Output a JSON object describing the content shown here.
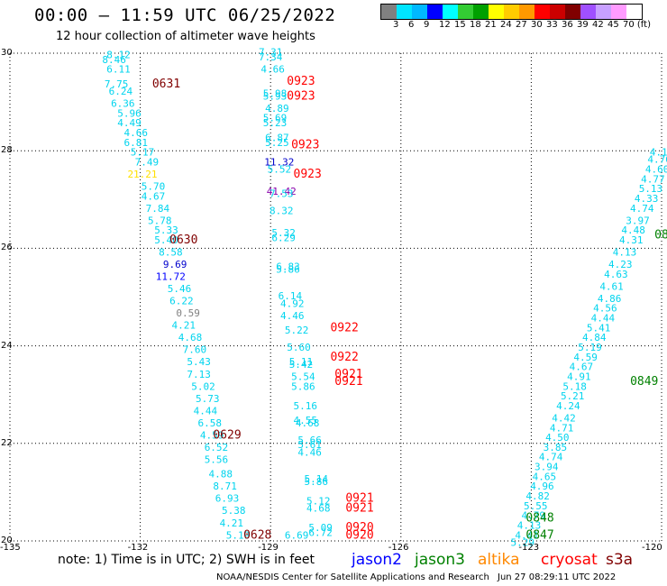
{
  "header": {
    "title": "00:00 — 11:59 UTC 06/25/2022",
    "subtitle": "12 hour collection of altimeter wave heights"
  },
  "colorbar": {
    "colors": [
      "#808080",
      "#00e5ff",
      "#00b8ff",
      "#0000ff",
      "#00ffff",
      "#33cc33",
      "#00a000",
      "#ffff00",
      "#ffcc00",
      "#ff9900",
      "#ff0000",
      "#cc0000",
      "#800000",
      "#a050ff",
      "#c8a0ff",
      "#ff9bff",
      "#ffffff"
    ],
    "labels": [
      "3",
      "6",
      "9",
      "12",
      "15",
      "18",
      "21",
      "24",
      "27",
      "30",
      "33",
      "36",
      "39",
      "42",
      "45",
      "70 (ft)"
    ]
  },
  "axes": {
    "x_ticks": [
      "-135",
      "-132",
      "-129",
      "-126",
      "-123",
      "-120"
    ],
    "y_ticks": [
      "30",
      "28",
      "26",
      "24",
      "22",
      "20"
    ]
  },
  "chart_data": {
    "type": "scatter",
    "title": "00:00 — 11:59 UTC 06/25/2022",
    "subtitle": "12 hour collection of altimeter wave heights",
    "xlim": [
      -135,
      -120
    ],
    "ylim": [
      20,
      30
    ],
    "grid": true,
    "x_ticks": [
      -135,
      -132,
      -129,
      -126,
      -123,
      -120
    ],
    "y_ticks": [
      20,
      22,
      24,
      26,
      28,
      30
    ],
    "colors": {
      "c3": "#00aaff",
      "c6": "#00d4ee",
      "c9": "#0000cc",
      "c12": "#0000ff",
      "c21": "#ffe000",
      "c42": "#8800aa",
      "gray": "#808080",
      "track_label": "#ff0000",
      "track_label_dark": "#800000",
      "track_label_green": "#008000"
    },
    "series": [
      {
        "points": [
          [
            -132.5,
            29.9,
            "8.12",
            "c6"
          ],
          [
            -132.6,
            29.8,
            "8.46",
            "c6"
          ],
          [
            -132.5,
            29.6,
            "6.11",
            "c6"
          ],
          [
            -132.55,
            29.3,
            "7.75",
            "c6"
          ],
          [
            -132.45,
            29.15,
            "6.24",
            "c6"
          ],
          [
            -132.4,
            28.9,
            "6.36",
            "c6"
          ],
          [
            -132.25,
            28.7,
            "5.96",
            "c6"
          ],
          [
            -132.25,
            28.5,
            "4.49",
            "c6"
          ],
          [
            -132.1,
            28.3,
            "4.66",
            "c6"
          ],
          [
            -132.1,
            28.1,
            "6.81",
            "c6"
          ],
          [
            -131.95,
            27.9,
            "5.17",
            "c6"
          ],
          [
            -131.85,
            27.7,
            "7.49",
            "c6"
          ],
          [
            -131.95,
            27.45,
            "21.21",
            "c21"
          ],
          [
            -131.7,
            27.2,
            "5.70",
            "c6"
          ],
          [
            -131.7,
            27.0,
            "4.67",
            "c6"
          ],
          [
            -131.6,
            26.75,
            "7.84",
            "c6"
          ],
          [
            -131.55,
            26.5,
            "5.78",
            "c6"
          ],
          [
            -131.4,
            26.3,
            "5.33",
            "c6"
          ],
          [
            -131.4,
            26.1,
            "5.40",
            "c6"
          ],
          [
            -131.3,
            25.85,
            "8.58",
            "c6"
          ],
          [
            -131.2,
            25.6,
            "9.69",
            "c9"
          ],
          [
            -131.3,
            25.35,
            "11.72",
            "c12"
          ],
          [
            -131.1,
            25.1,
            "5.46",
            "c6"
          ],
          [
            -131.05,
            24.85,
            "6.22",
            "c6"
          ],
          [
            -130.9,
            24.6,
            "0.59",
            "gray"
          ],
          [
            -131.0,
            24.35,
            "4.21",
            "c6"
          ],
          [
            -130.85,
            24.1,
            "4.68",
            "c6"
          ],
          [
            -130.75,
            23.85,
            "7.60",
            "c6"
          ],
          [
            -130.65,
            23.6,
            "5.43",
            "c6"
          ],
          [
            -130.65,
            23.35,
            "7.13",
            "c6"
          ],
          [
            -130.55,
            23.1,
            "5.02",
            "c6"
          ],
          [
            -130.45,
            22.85,
            "5.73",
            "c6"
          ],
          [
            -130.5,
            22.6,
            "4.44",
            "c6"
          ],
          [
            -130.4,
            22.35,
            "6.58",
            "c6"
          ],
          [
            -130.35,
            22.1,
            "4.59",
            "c6"
          ],
          [
            -130.25,
            21.85,
            "6.52",
            "c6"
          ],
          [
            -130.25,
            21.6,
            "5.56",
            "c6"
          ],
          [
            -130.15,
            21.3,
            "4.88",
            "c6"
          ],
          [
            -130.05,
            21.05,
            "8.71",
            "c6"
          ],
          [
            -130.0,
            20.8,
            "6.93",
            "c6"
          ],
          [
            -129.85,
            20.55,
            "5.38",
            "c6"
          ],
          [
            -129.9,
            20.3,
            "4.21",
            "c6"
          ],
          [
            -129.75,
            20.05,
            "5.19",
            "c6"
          ]
        ]
      },
      {
        "points": [
          [
            -129.0,
            29.95,
            "7.31",
            "c6"
          ],
          [
            -129.0,
            29.85,
            "7.34",
            "c6"
          ],
          [
            -128.95,
            29.6,
            "4.66",
            "c6"
          ],
          [
            -128.9,
            29.1,
            "5.98",
            "c6"
          ],
          [
            -128.9,
            29.05,
            "5.93",
            "c6"
          ],
          [
            -128.85,
            28.8,
            "4.89",
            "c6"
          ],
          [
            -128.9,
            28.6,
            "5.69",
            "c6"
          ],
          [
            -128.9,
            28.5,
            "5.23",
            "c6"
          ],
          [
            -128.85,
            28.2,
            "6.87",
            "c6"
          ],
          [
            -128.85,
            28.1,
            "5.25",
            "c6"
          ],
          [
            -128.8,
            27.7,
            "11.32",
            "c9"
          ],
          [
            -128.8,
            27.55,
            "5.52",
            "c6"
          ],
          [
            -128.75,
            27.1,
            "41.42",
            "c42"
          ],
          [
            -128.75,
            27.05,
            "7.53",
            "c6"
          ],
          [
            -128.75,
            26.7,
            "8.32",
            "c6"
          ],
          [
            -128.7,
            26.25,
            "5.32",
            "c6"
          ],
          [
            -128.7,
            26.15,
            "6.29",
            "c6"
          ],
          [
            -128.6,
            25.55,
            "6.83",
            "c6"
          ],
          [
            -128.6,
            25.5,
            "5.86",
            "c6"
          ],
          [
            -128.55,
            24.95,
            "6.14",
            "c6"
          ],
          [
            -128.5,
            24.8,
            "4.92",
            "c6"
          ],
          [
            -128.5,
            24.55,
            "4.46",
            "c6"
          ],
          [
            -128.4,
            24.25,
            "5.22",
            "c6"
          ],
          [
            -128.35,
            23.9,
            "5.60",
            "c6"
          ],
          [
            -128.3,
            23.6,
            "5.11",
            "c6"
          ],
          [
            -128.3,
            23.55,
            "5.42",
            "c6"
          ],
          [
            -128.25,
            23.3,
            "5.54",
            "c6"
          ],
          [
            -128.25,
            23.1,
            "5.86",
            "c6"
          ],
          [
            -128.2,
            22.7,
            "5.16",
            "c6"
          ],
          [
            -128.2,
            22.4,
            "4.55",
            "c6"
          ],
          [
            -128.15,
            22.35,
            "4.68",
            "c6"
          ],
          [
            -128.1,
            22.0,
            "5.66",
            "c6"
          ],
          [
            -128.1,
            21.9,
            "5.61",
            "c6"
          ],
          [
            -128.1,
            21.75,
            "4.46",
            "c6"
          ],
          [
            -127.95,
            21.2,
            "5.14",
            "c6"
          ],
          [
            -127.95,
            21.15,
            "5.86",
            "c6"
          ],
          [
            -127.9,
            20.75,
            "5.12",
            "c6"
          ],
          [
            -127.9,
            20.6,
            "4.68",
            "c6"
          ],
          [
            -127.85,
            20.2,
            "5.09",
            "c6"
          ],
          [
            -127.85,
            20.1,
            "6.72",
            "c6"
          ],
          [
            -128.4,
            20.05,
            "6.69",
            "c6"
          ]
        ]
      },
      {
        "points": [
          [
            -120.0,
            27.9,
            "4.11",
            "c6"
          ],
          [
            -120.05,
            27.75,
            "4.76",
            "c6"
          ],
          [
            -120.1,
            27.55,
            "4.60",
            "c6"
          ],
          [
            -120.2,
            27.35,
            "4.77",
            "c6"
          ],
          [
            -120.25,
            27.15,
            "5.13",
            "c6"
          ],
          [
            -120.35,
            26.95,
            "4.33",
            "c6"
          ],
          [
            -120.45,
            26.75,
            "4.74",
            "c6"
          ],
          [
            -120.55,
            26.5,
            "3.97",
            "c6"
          ],
          [
            -120.65,
            26.3,
            "4.48",
            "c6"
          ],
          [
            -120.7,
            26.1,
            "4.31",
            "c6"
          ],
          [
            -120.85,
            25.85,
            "4.13",
            "c6"
          ],
          [
            -120.95,
            25.6,
            "4.23",
            "c6"
          ],
          [
            -121.05,
            25.4,
            "4.63",
            "c6"
          ],
          [
            -121.15,
            25.15,
            "4.61",
            "c6"
          ],
          [
            -121.2,
            24.9,
            "4.86",
            "c6"
          ],
          [
            -121.3,
            24.7,
            "4.56",
            "c6"
          ],
          [
            -121.35,
            24.5,
            "4.44",
            "c6"
          ],
          [
            -121.45,
            24.3,
            "5.41",
            "c6"
          ],
          [
            -121.55,
            24.1,
            "4.84",
            "c6"
          ],
          [
            -121.65,
            23.9,
            "5.19",
            "c6"
          ],
          [
            -121.75,
            23.7,
            "4.59",
            "c6"
          ],
          [
            -121.85,
            23.5,
            "4.67",
            "c6"
          ],
          [
            -121.9,
            23.3,
            "4.91",
            "c6"
          ],
          [
            -122.0,
            23.1,
            "5.18",
            "c6"
          ],
          [
            -122.05,
            22.9,
            "5.21",
            "c6"
          ],
          [
            -122.15,
            22.7,
            "4.24",
            "c6"
          ],
          [
            -122.25,
            22.45,
            "4.42",
            "c6"
          ],
          [
            -122.3,
            22.25,
            "4.71",
            "c6"
          ],
          [
            -122.4,
            22.05,
            "4.50",
            "c6"
          ],
          [
            -122.45,
            21.85,
            "3.85",
            "c6"
          ],
          [
            -122.55,
            21.65,
            "4.74",
            "c6"
          ],
          [
            -122.65,
            21.45,
            "3.94",
            "c6"
          ],
          [
            -122.7,
            21.25,
            "4.65",
            "c6"
          ],
          [
            -122.75,
            21.05,
            "4.96",
            "c6"
          ],
          [
            -122.85,
            20.85,
            "4.82",
            "c6"
          ],
          [
            -122.9,
            20.65,
            "5.55",
            "c6"
          ],
          [
            -122.95,
            20.45,
            "4.79",
            "c6"
          ],
          [
            -123.05,
            20.25,
            "4.13",
            "c6"
          ],
          [
            -123.1,
            20.05,
            "4.41",
            "c6"
          ],
          [
            -123.2,
            19.9,
            "5.29",
            "c6"
          ]
        ]
      }
    ],
    "track_labels": [
      [
        -131.4,
        29.3,
        "0631",
        "track_label_dark"
      ],
      [
        -128.3,
        29.35,
        "0923",
        "track_label"
      ],
      [
        -128.3,
        29.05,
        "0923",
        "track_label"
      ],
      [
        -128.2,
        28.05,
        "0923",
        "track_label"
      ],
      [
        -128.15,
        27.45,
        "0923",
        "track_label"
      ],
      [
        -131.0,
        26.1,
        "0630",
        "track_label_dark"
      ],
      [
        -127.3,
        24.3,
        "0922",
        "track_label"
      ],
      [
        -127.3,
        23.7,
        "0922",
        "track_label"
      ],
      [
        -127.2,
        23.35,
        "0921",
        "track_label"
      ],
      [
        -127.2,
        23.2,
        "0921",
        "track_label"
      ],
      [
        -130.0,
        22.1,
        "0629",
        "track_label_dark"
      ],
      [
        -126.95,
        20.8,
        "0921",
        "track_label"
      ],
      [
        -126.95,
        20.6,
        "0921",
        "track_label"
      ],
      [
        -126.95,
        20.2,
        "0920",
        "track_label"
      ],
      [
        -126.95,
        20.05,
        "0920",
        "track_label"
      ],
      [
        -129.3,
        20.05,
        "0628",
        "track_label_dark"
      ],
      [
        -120.4,
        23.2,
        "0849",
        "track_label_green"
      ],
      [
        -122.8,
        20.4,
        "0848",
        "track_label_green"
      ],
      [
        -122.8,
        20.05,
        "0847",
        "track_label_green"
      ],
      [
        -120.0,
        26.2,
        "08",
        "track_label_green"
      ]
    ]
  },
  "legend": {
    "note": "note: 1) Time is in UTC; 2) SWH is in feet",
    "items": [
      {
        "label": "jason2",
        "color": "#0000ff"
      },
      {
        "label": "jason3",
        "color": "#008000"
      },
      {
        "label": "altika",
        "color": "#ff8800"
      },
      {
        "label": "cryosat",
        "color": "#ff0000"
      },
      {
        "label": "s3a",
        "color": "#800000"
      }
    ]
  },
  "footer": {
    "credit": "NOAA/NESDIS Center for Satellite Applications and Research",
    "generated": "Jun 27 08:29:11 UTC 2022"
  }
}
